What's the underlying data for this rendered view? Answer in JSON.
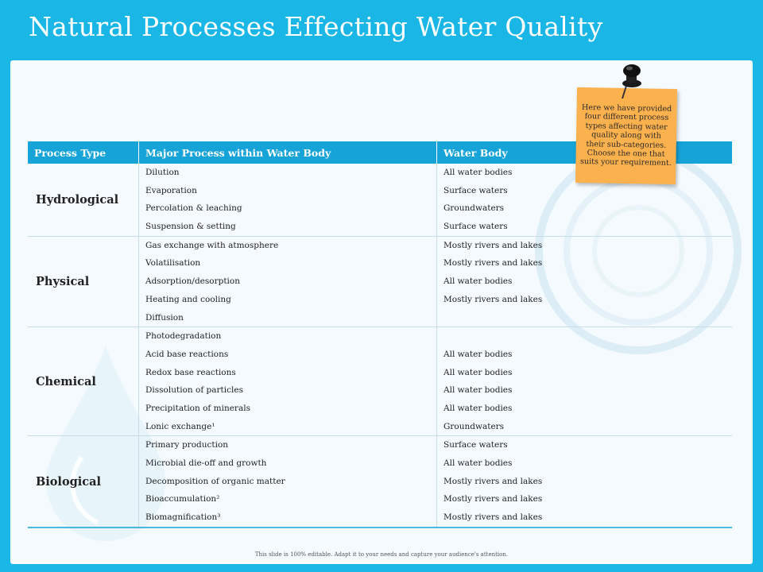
{
  "slide": {
    "title": "Natural Processes Effecting Water Quality",
    "footer": "This slide is 100% editable. Adapt it to your needs and capture your audience's attention."
  },
  "table": {
    "headers": [
      "Process Type",
      "Major Process within Water Body",
      "Water Body"
    ],
    "groups": [
      {
        "type": "Hydrological",
        "processes": [
          "Dilution",
          "Evaporation",
          "Percolation & leaching",
          "Suspension & setting"
        ],
        "bodies": [
          "All water bodies",
          "Surface waters",
          "Groundwaters",
          "Surface waters"
        ]
      },
      {
        "type": "Physical",
        "processes": [
          "Gas exchange with atmosphere",
          "Volatilisation",
          "Adsorption/desorption",
          "Heating and cooling",
          "Diffusion"
        ],
        "bodies": [
          "Mostly rivers and lakes",
          "Mostly rivers and lakes",
          "All water bodies",
          "Mostly rivers and lakes",
          ""
        ]
      },
      {
        "type": "Chemical",
        "processes": [
          "Photodegradation",
          "Acid base reactions",
          "Redox base reactions",
          "Dissolution of particles",
          "Precipitation of minerals",
          "Lonic exchange¹"
        ],
        "bodies": [
          "",
          "All water bodies",
          "All water bodies",
          "All water bodies",
          "All water bodies",
          "Groundwaters"
        ]
      },
      {
        "type": "Biological",
        "processes": [
          "Primary production",
          "Microbial die-off and growth",
          "Decomposition of organic matter",
          "Bioaccumulation²",
          "Biomagnification³"
        ],
        "bodies": [
          "Surface waters",
          "All water bodies",
          "Mostly rivers and lakes",
          "Mostly rivers and lakes",
          "Mostly rivers and lakes"
        ]
      }
    ]
  },
  "sticky_note": {
    "text_lines": [
      "Here we have provided",
      "four different process",
      "types affecting water",
      "quality along with",
      "their sub-categories.",
      "Choose the one that",
      "suits your requirement."
    ],
    "icon": "pushpin-icon",
    "color": "#fbb14d"
  },
  "colors": {
    "background": "#1ab7e6",
    "header": "#16a3d8",
    "type_text": "#1580b8"
  }
}
